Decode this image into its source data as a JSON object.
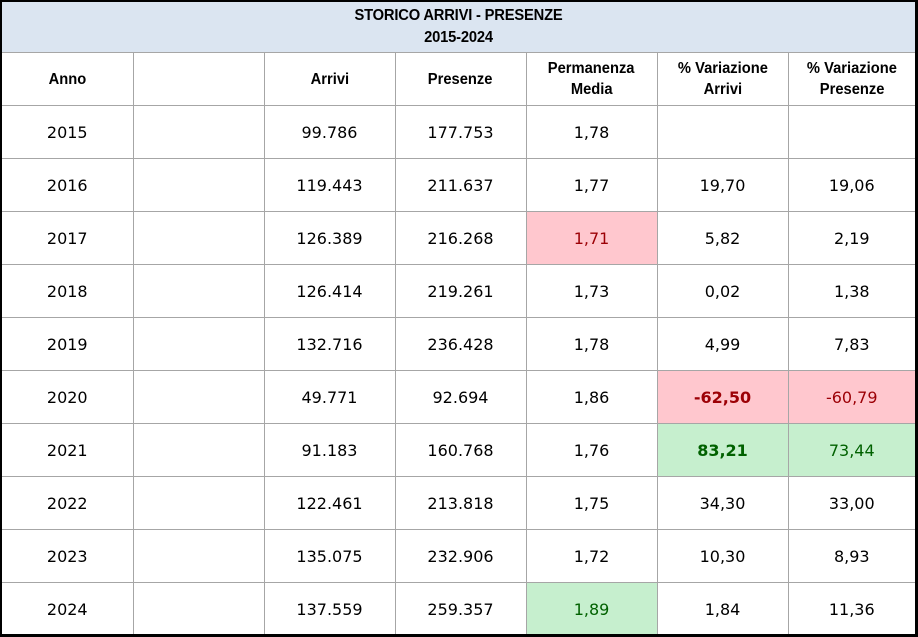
{
  "title": {
    "line1": "STORICO ARRIVI - PRESENZE",
    "line2": "2015-2024"
  },
  "headers": {
    "anno": "Anno",
    "blank": "",
    "arrivi": "Arrivi",
    "presenze": "Presenze",
    "permanenza_l1": "Permanenza",
    "permanenza_l2": "Media",
    "var_arrivi_l1": "% Variazione",
    "var_arrivi_l2": "Arrivi",
    "var_presenze_l1": "% Variazione",
    "var_presenze_l2": "Presenze"
  },
  "rows": [
    {
      "anno": "2015",
      "arrivi": "99.786",
      "presenze": "177.753",
      "permanenza": "1,78",
      "var_arrivi": "",
      "var_presenze": ""
    },
    {
      "anno": "2016",
      "arrivi": "119.443",
      "presenze": "211.637",
      "permanenza": "1,77",
      "var_arrivi": "19,70",
      "var_presenze": "19,06"
    },
    {
      "anno": "2017",
      "arrivi": "126.389",
      "presenze": "216.268",
      "permanenza": "1,71",
      "var_arrivi": "5,82",
      "var_presenze": "2,19"
    },
    {
      "anno": "2018",
      "arrivi": "126.414",
      "presenze": "219.261",
      "permanenza": "1,73",
      "var_arrivi": "0,02",
      "var_presenze": "1,38"
    },
    {
      "anno": "2019",
      "arrivi": "132.716",
      "presenze": "236.428",
      "permanenza": "1,78",
      "var_arrivi": "4,99",
      "var_presenze": "7,83"
    },
    {
      "anno": "2020",
      "arrivi": "49.771",
      "presenze": "92.694",
      "permanenza": "1,86",
      "var_arrivi": "-62,50",
      "var_presenze": "-60,79"
    },
    {
      "anno": "2021",
      "arrivi": "91.183",
      "presenze": "160.768",
      "permanenza": "1,76",
      "var_arrivi": "83,21",
      "var_presenze": "73,44"
    },
    {
      "anno": "2022",
      "arrivi": "122.461",
      "presenze": "213.818",
      "permanenza": "1,75",
      "var_arrivi": "34,30",
      "var_presenze": "33,00"
    },
    {
      "anno": "2023",
      "arrivi": "135.075",
      "presenze": "232.906",
      "permanenza": "1,72",
      "var_arrivi": "10,30",
      "var_presenze": "8,93"
    },
    {
      "anno": "2024",
      "arrivi": "137.559",
      "presenze": "259.357",
      "permanenza": "1,89",
      "var_arrivi": "1,84",
      "var_presenze": "11,36"
    }
  ],
  "colors": {
    "title_bg": "#dbe5f1",
    "negative_fill": "#ffc7ce",
    "negative_text": "#9c0006",
    "positive_fill": "#c6efce",
    "positive_text": "#006100",
    "grid": "#a6a6a6"
  }
}
